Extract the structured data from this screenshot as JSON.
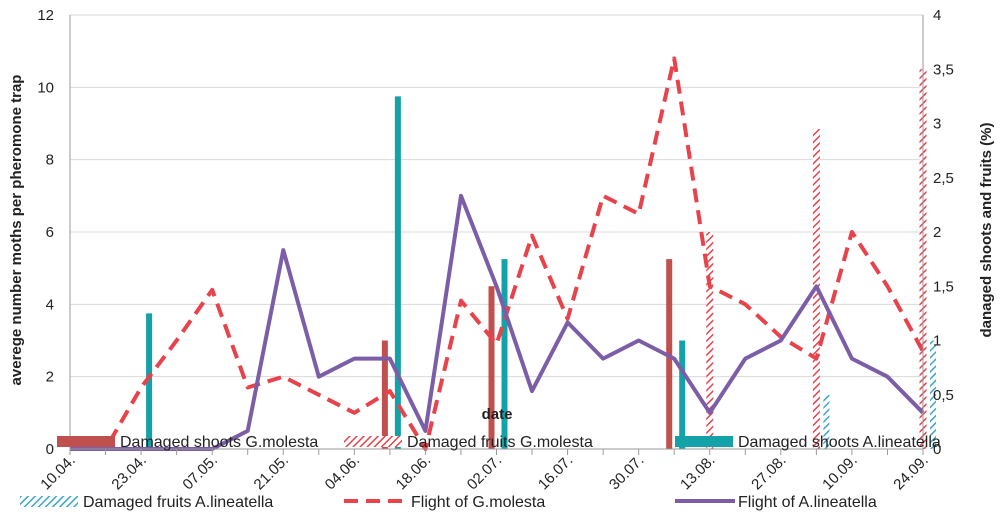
{
  "chart_data": {
    "type": "bar+line",
    "x_label": "date",
    "y_left_label": "averege number moths per pheromone trap",
    "y_right_label": "danaged shoots and fruits (%)",
    "y_left_range": [
      0,
      12
    ],
    "y_left_ticks": [
      "0",
      "2",
      "4",
      "6",
      "8",
      "10",
      "12"
    ],
    "y_right_range": [
      0,
      4
    ],
    "y_right_ticks": [
      "0",
      "0,5",
      "1",
      "1,5",
      "2",
      "2,5",
      "3",
      "3,5",
      "4"
    ],
    "grid": "horizontal",
    "legend_position": "bottom",
    "colors": {
      "g_molesta_shoots": "#C0504D",
      "g_molesta_fruits": "#E8424B",
      "a_lineatella_shoots": "#12A2A8",
      "a_lineatella_fruits": "#3DA5C6",
      "g_molesta_flight": "#E8424B",
      "a_lineatella_flight": "#7B5EA7"
    },
    "x": [
      "10.04.",
      "17.04.",
      "23.04.",
      "30.04.",
      "07.05.",
      "14.05.",
      "21.05.",
      "28.05.",
      "04.06.",
      "11.06.",
      "18.06.",
      "25.06.",
      "02.07.",
      "09.07.",
      "16.07.",
      "23.07.",
      "30.07.",
      "06.08.",
      "13.08.",
      "20.08.",
      "27.08.",
      "03.09.",
      "10.09.",
      "17.09.",
      "24.09."
    ],
    "x_tick_labels": [
      "10.04.",
      "23.04.",
      "07.05.",
      "21.05.",
      "04.06.",
      "18.06.",
      "02.07.",
      "16.07.",
      "30.07.",
      "13.08.",
      "27.08.",
      "10.09.",
      "24.09."
    ],
    "bar_series": [
      {
        "name": "Damaged shoots G.molesta",
        "axis": "right",
        "style": "solid",
        "points": [
          {
            "x": "11.06.",
            "value": 1.0
          },
          {
            "x": "02.07.",
            "value": 1.5
          },
          {
            "x": "06.08.",
            "value": 1.75
          }
        ]
      },
      {
        "name": "Damaged fruits G.molesta",
        "axis": "right",
        "style": "hatched",
        "points": [
          {
            "x": "13.08.",
            "value": 2.0
          },
          {
            "x": "03.09.",
            "value": 2.95
          },
          {
            "x": "24.09.",
            "value": 3.5
          }
        ]
      },
      {
        "name": "Damaged shoots A.lineatella",
        "axis": "right",
        "style": "solid",
        "points": [
          {
            "x": "23.04.",
            "value": 1.25
          },
          {
            "x": "11.06.",
            "value": 3.25
          },
          {
            "x": "02.07.",
            "value": 1.75
          },
          {
            "x": "06.08.",
            "value": 1.0
          }
        ]
      },
      {
        "name": "Damaged fruits A.lineatella",
        "axis": "right",
        "style": "hatched",
        "points": [
          {
            "x": "03.09.",
            "value": 0.5
          },
          {
            "x": "24.09.",
            "value": 1.0
          }
        ]
      }
    ],
    "line_series": [
      {
        "name": "Flight of G.molesta",
        "axis": "left",
        "style": "dashed",
        "values": [
          0,
          0,
          1.7,
          3.0,
          4.4,
          1.7,
          2.0,
          1.5,
          1.0,
          1.6,
          0,
          4.1,
          2.9,
          5.9,
          3.6,
          7.0,
          6.5,
          10.8,
          4.5,
          4.0,
          3.1,
          2.5,
          6.0,
          4.5,
          2.7
        ]
      },
      {
        "name": "Flight of A.lineatella",
        "axis": "left",
        "style": "solid",
        "values": [
          0,
          0,
          0,
          0,
          0,
          0.5,
          5.5,
          2.0,
          2.5,
          2.5,
          0.5,
          7.0,
          4.5,
          1.6,
          3.5,
          2.5,
          3.0,
          2.5,
          1.0,
          2.5,
          3.0,
          4.5,
          2.5,
          2.0,
          1.0
        ]
      }
    ],
    "legend": [
      "Damaged shoots G.molesta",
      "Damaged fruits G.molesta",
      "Damaged shoots A.lineatella",
      "Damaged fruits A.lineatella",
      "Flight of G.molesta",
      "Flight of A.lineatella"
    ]
  }
}
